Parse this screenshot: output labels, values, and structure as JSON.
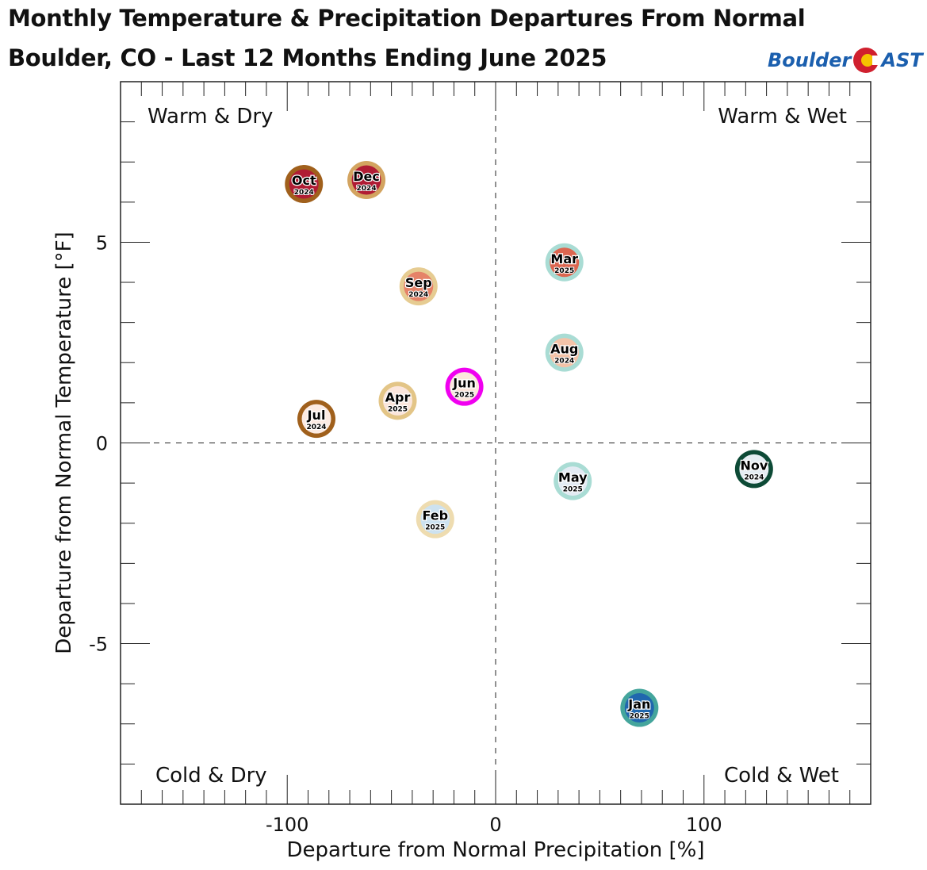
{
  "header": {
    "title_line1": "Monthly Temperature & Precipitation Departures From Normal",
    "title_line2": "Boulder, CO - Last 12 Months Ending June 2025",
    "logo_left": "Boulder",
    "logo_right": "AST",
    "logo_colors": {
      "text": "#1b5fae",
      "ring": "#d0202e",
      "center": "#f5c400"
    }
  },
  "chart_data": {
    "type": "scatter",
    "title": "Monthly Temperature & Precipitation Departures From Normal",
    "subtitle": "Boulder, CO - Last 12 Months Ending June 2025",
    "xlabel": "Departure from Normal Precipitation [%]",
    "ylabel": "Departure from Normal Temperature [°F]",
    "xlim": [
      -180,
      180
    ],
    "ylim": [
      -9,
      9
    ],
    "xticks": [
      -100,
      0,
      100
    ],
    "xtick_labels": [
      "-100",
      "0",
      "100"
    ],
    "yticks": [
      -5,
      0,
      5
    ],
    "ytick_labels": [
      "-5",
      "0",
      "5"
    ],
    "x_minor_step": 10,
    "y_minor_step": 1,
    "zero_lines": "dashed",
    "grid": false,
    "quadrant_labels": {
      "top_left": "Warm & Dry",
      "top_right": "Warm & Wet",
      "bottom_left": "Cold & Dry",
      "bottom_right": "Cold & Wet"
    },
    "points": [
      {
        "month": "Jul",
        "year": "2024",
        "x": -86,
        "y": 0.6,
        "fill": "#fcebe3",
        "ring": "#a0601c"
      },
      {
        "month": "Aug",
        "year": "2024",
        "x": 33,
        "y": 2.25,
        "fill": "#f4c3a8",
        "ring": "#a9dcd4"
      },
      {
        "month": "Sep",
        "year": "2024",
        "x": -37,
        "y": 3.9,
        "fill": "#e58268",
        "ring": "#e6cc92"
      },
      {
        "month": "Oct",
        "year": "2024",
        "x": -92,
        "y": 6.45,
        "fill": "#b01c34",
        "ring": "#a0601c"
      },
      {
        "month": "Nov",
        "year": "2024",
        "x": 124,
        "y": -0.65,
        "fill": "#e6eef3",
        "ring": "#0d4a36"
      },
      {
        "month": "Dec",
        "year": "2024",
        "x": -62,
        "y": 6.55,
        "fill": "#b01c34",
        "ring": "#d3a460"
      },
      {
        "month": "Jan",
        "year": "2025",
        "x": 69,
        "y": -6.6,
        "fill": "#2067ae",
        "ring": "#44a59c"
      },
      {
        "month": "Feb",
        "year": "2025",
        "x": -29,
        "y": -1.9,
        "fill": "#cde2f0",
        "ring": "#eedcb0"
      },
      {
        "month": "Mar",
        "year": "2025",
        "x": 33,
        "y": 4.5,
        "fill": "#dc6650",
        "ring": "#a9dcd4"
      },
      {
        "month": "Apr",
        "year": "2025",
        "x": -47,
        "y": 1.05,
        "fill": "#fbe6dc",
        "ring": "#e3c587"
      },
      {
        "month": "May",
        "year": "2025",
        "x": 37,
        "y": -0.95,
        "fill": "#e3ebf3",
        "ring": "#a9dcd4"
      },
      {
        "month": "Jun",
        "year": "2025",
        "x": -15,
        "y": 1.4,
        "fill": "#fbe6dc",
        "ring": "#f000f0"
      }
    ]
  }
}
